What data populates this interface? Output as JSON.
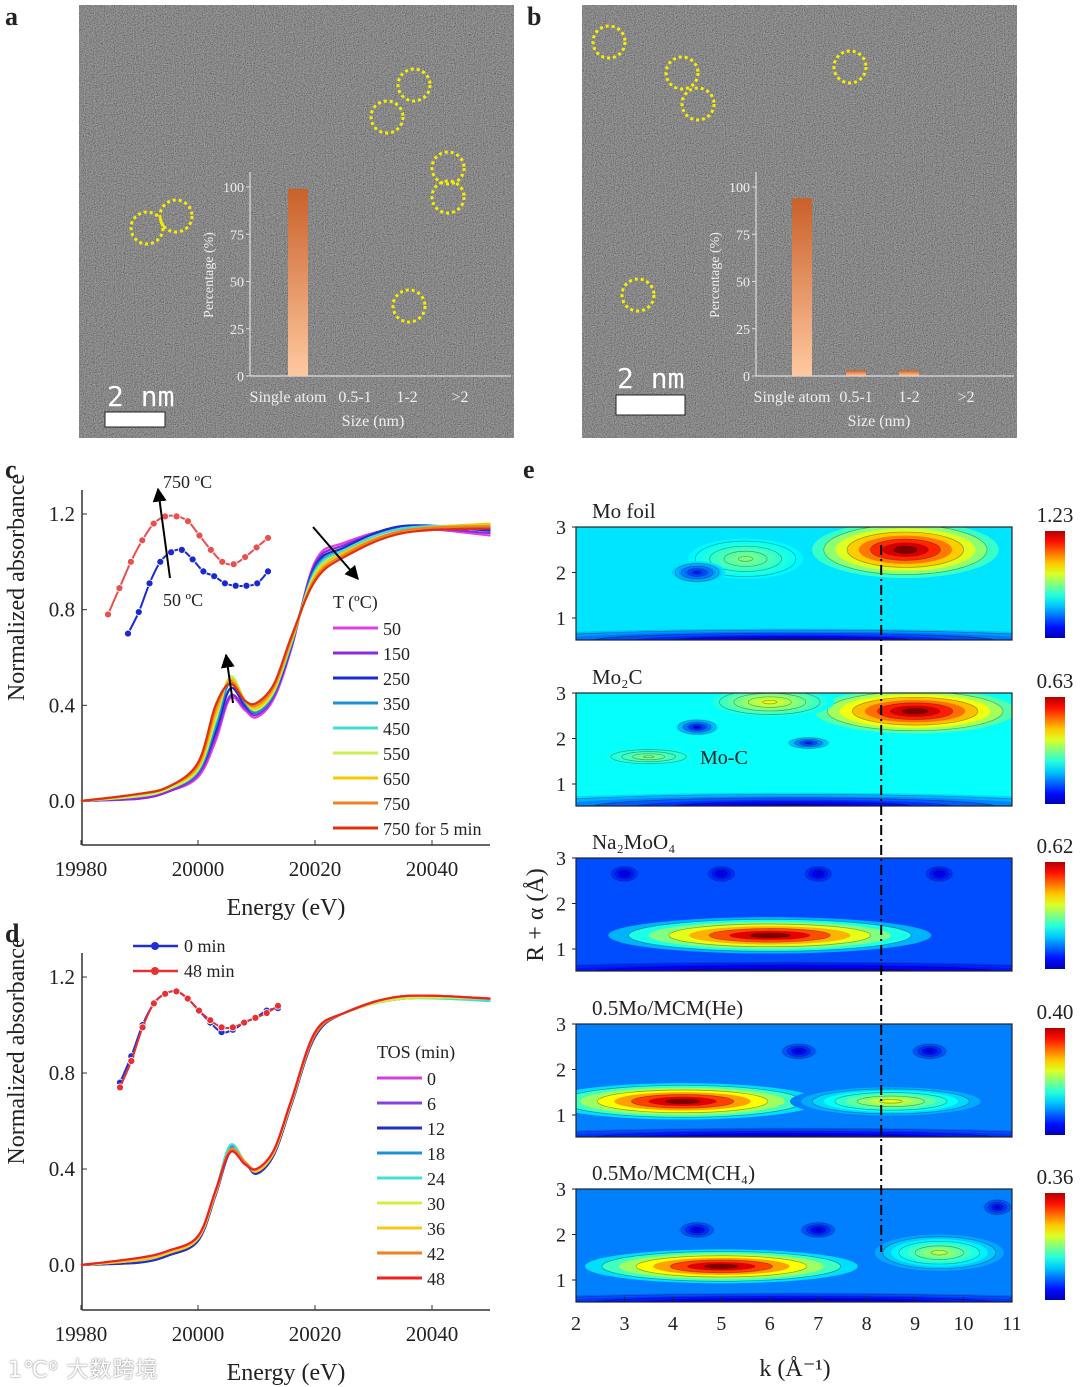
{
  "panel_labels": {
    "a": "a",
    "b": "b",
    "c": "c",
    "d": "d",
    "e": "e"
  },
  "watermark": "1℃⁰ 大数跨境",
  "tem": [
    {
      "id": "a",
      "scale_bar": "2 nm",
      "inset": {
        "ylabel": "Percentage (%)",
        "xlabel": "Size (nm)",
        "yticks": [
          "100",
          "75",
          "50",
          "25",
          "0"
        ],
        "categories": [
          "Single atom",
          "0.5-1",
          "1-2",
          ">2"
        ],
        "values": [
          99,
          0,
          0,
          0
        ]
      }
    },
    {
      "id": "b",
      "scale_bar": "2 nm",
      "inset": {
        "ylabel": "Percentage (%)",
        "xlabel": "Size (nm)",
        "yticks": [
          "100",
          "75",
          "50",
          "25",
          "0"
        ],
        "categories": [
          "Single atom",
          "0.5-1",
          "1-2",
          ">2"
        ],
        "values": [
          94,
          3,
          3,
          0
        ]
      }
    }
  ],
  "chart_data": [
    {
      "id": "c",
      "type": "line",
      "xlabel": "Energy (eV)",
      "ylabel": "Normalized absorbance",
      "xlim": [
        19980,
        20050
      ],
      "ylim": [
        -0.18,
        1.3
      ],
      "xticks": [
        "19980",
        "20000",
        "20020",
        "20040"
      ],
      "yticks": [
        "0.0",
        "0.4",
        "0.8",
        "1.2"
      ],
      "legend_title": "T (ºC)",
      "x": [
        19980,
        19990,
        19995,
        20000,
        20003,
        20005.5,
        20008,
        20010,
        20013,
        20016,
        20020,
        20025,
        20035,
        20050
      ],
      "series": [
        {
          "name": "50",
          "color": "#e040e0",
          "values": [
            0,
            0.01,
            0.04,
            0.1,
            0.25,
            0.43,
            0.38,
            0.35,
            0.43,
            0.64,
            1.0,
            1.08,
            1.14,
            1.11
          ]
        },
        {
          "name": "150",
          "color": "#8a2be2",
          "values": [
            0,
            0.01,
            0.04,
            0.11,
            0.27,
            0.44,
            0.39,
            0.36,
            0.44,
            0.65,
            0.99,
            1.07,
            1.14,
            1.12
          ]
        },
        {
          "name": "250",
          "color": "#1a2ccc",
          "values": [
            0,
            0.02,
            0.05,
            0.12,
            0.29,
            0.47,
            0.4,
            0.37,
            0.45,
            0.65,
            0.98,
            1.06,
            1.15,
            1.13
          ]
        },
        {
          "name": "350",
          "color": "#1e90d0",
          "values": [
            0,
            0.02,
            0.05,
            0.12,
            0.31,
            0.5,
            0.41,
            0.37,
            0.45,
            0.66,
            0.97,
            1.05,
            1.14,
            1.14
          ]
        },
        {
          "name": "450",
          "color": "#40e0d0",
          "values": [
            0,
            0.02,
            0.05,
            0.13,
            0.33,
            0.52,
            0.42,
            0.38,
            0.46,
            0.66,
            0.96,
            1.05,
            1.14,
            1.15
          ]
        },
        {
          "name": "550",
          "color": "#c8f050",
          "values": [
            0,
            0.02,
            0.05,
            0.13,
            0.34,
            0.52,
            0.42,
            0.38,
            0.46,
            0.67,
            0.95,
            1.04,
            1.13,
            1.16
          ]
        },
        {
          "name": "650",
          "color": "#f5c800",
          "values": [
            0,
            0.03,
            0.06,
            0.14,
            0.36,
            0.51,
            0.42,
            0.39,
            0.47,
            0.67,
            0.94,
            1.04,
            1.13,
            1.16
          ]
        },
        {
          "name": "750",
          "color": "#f08020",
          "values": [
            0,
            0.03,
            0.06,
            0.15,
            0.38,
            0.5,
            0.42,
            0.4,
            0.48,
            0.68,
            0.93,
            1.03,
            1.13,
            1.15
          ]
        },
        {
          "name": "750 for 5 min",
          "color": "#e03010",
          "values": [
            0,
            0.03,
            0.06,
            0.16,
            0.4,
            0.49,
            0.42,
            0.41,
            0.49,
            0.69,
            0.92,
            1.02,
            1.12,
            1.14
          ]
        }
      ],
      "inset": {
        "labels": {
          "top": "750 ºC",
          "bottom": "50 ºC"
        },
        "series": [
          {
            "name": "750 ºC",
            "color": "#e85050",
            "values": [
              0.78,
              0.89,
              1.0,
              1.09,
              1.16,
              1.19,
              1.19,
              1.17,
              1.11,
              1.05,
              1.0,
              0.99,
              1.02,
              1.06,
              1.1
            ]
          },
          {
            "name": "50 ºC",
            "color": "#1a28d0",
            "values": [
              0.7,
              0.79,
              0.91,
              1.0,
              1.04,
              1.05,
              1.01,
              0.96,
              0.94,
              0.91,
              0.9,
              0.9,
              0.91,
              0.96
            ]
          }
        ]
      }
    },
    {
      "id": "d",
      "type": "line",
      "xlabel": "Energy (eV)",
      "ylabel": "Normalized absorbance",
      "xlim": [
        19980,
        20050
      ],
      "ylim": [
        -0.18,
        1.3
      ],
      "xticks": [
        "19980",
        "20000",
        "20020",
        "20040"
      ],
      "yticks": [
        "0.0",
        "0.4",
        "0.8",
        "1.2"
      ],
      "legend_title": "TOS (min)",
      "x": [
        19980,
        19990,
        19995,
        20000,
        20003,
        20005.5,
        20008,
        20010,
        20013,
        20016,
        20020,
        20025,
        20035,
        20050
      ],
      "series": [
        {
          "name": "0",
          "color": "#d040e0",
          "values": [
            0,
            0.02,
            0.05,
            0.11,
            0.3,
            0.48,
            0.43,
            0.39,
            0.47,
            0.68,
            0.96,
            1.05,
            1.11,
            1.11
          ]
        },
        {
          "name": "6",
          "color": "#8a40e0",
          "values": [
            0,
            0.02,
            0.05,
            0.11,
            0.3,
            0.48,
            0.43,
            0.39,
            0.47,
            0.68,
            0.96,
            1.05,
            1.11,
            1.11
          ]
        },
        {
          "name": "12",
          "color": "#2030c0",
          "values": [
            0,
            0.01,
            0.04,
            0.1,
            0.29,
            0.47,
            0.43,
            0.38,
            0.46,
            0.67,
            0.95,
            1.05,
            1.12,
            1.11
          ]
        },
        {
          "name": "18",
          "color": "#2090d8",
          "values": [
            0,
            0.02,
            0.05,
            0.11,
            0.3,
            0.49,
            0.43,
            0.39,
            0.47,
            0.68,
            0.96,
            1.05,
            1.11,
            1.11
          ]
        },
        {
          "name": "24",
          "color": "#40e0d8",
          "values": [
            0,
            0.03,
            0.06,
            0.12,
            0.31,
            0.5,
            0.43,
            0.4,
            0.47,
            0.68,
            0.96,
            1.05,
            1.11,
            1.1
          ]
        },
        {
          "name": "30",
          "color": "#d0f040",
          "values": [
            0,
            0.02,
            0.05,
            0.11,
            0.3,
            0.48,
            0.43,
            0.39,
            0.47,
            0.68,
            0.96,
            1.05,
            1.11,
            1.11
          ]
        },
        {
          "name": "36",
          "color": "#f8c820",
          "values": [
            0,
            0.02,
            0.05,
            0.11,
            0.3,
            0.48,
            0.43,
            0.39,
            0.47,
            0.68,
            0.96,
            1.05,
            1.12,
            1.11
          ]
        },
        {
          "name": "42",
          "color": "#f08020",
          "values": [
            0,
            0.03,
            0.06,
            0.12,
            0.31,
            0.48,
            0.43,
            0.4,
            0.48,
            0.69,
            0.96,
            1.05,
            1.12,
            1.11
          ]
        },
        {
          "name": "48",
          "color": "#f02020",
          "values": [
            0,
            0.03,
            0.06,
            0.12,
            0.31,
            0.47,
            0.42,
            0.4,
            0.48,
            0.69,
            0.97,
            1.05,
            1.12,
            1.11
          ]
        }
      ],
      "inset": {
        "legend": [
          "0 min",
          "48 min"
        ],
        "series": [
          {
            "name": "0 min",
            "color": "#2030d0",
            "values": [
              0.76,
              0.87,
              1.0,
              1.09,
              1.13,
              1.14,
              1.11,
              1.06,
              1.01,
              0.97,
              0.98,
              1.01,
              1.03,
              1.06,
              1.07
            ]
          },
          {
            "name": "48 min",
            "color": "#e83030",
            "values": [
              0.74,
              0.85,
              0.99,
              1.09,
              1.13,
              1.14,
              1.11,
              1.06,
              1.02,
              0.99,
              0.99,
              1.01,
              1.03,
              1.05,
              1.08
            ]
          }
        ]
      }
    },
    {
      "id": "e",
      "type": "heatmap",
      "xlabel": "k (Å⁻¹)",
      "ylabel": "R + α (Å)",
      "xlim": [
        2,
        11
      ],
      "ylim": [
        0.5,
        3.0
      ],
      "xticks": [
        "2",
        "3",
        "4",
        "5",
        "6",
        "7",
        "8",
        "9",
        "10",
        "11"
      ],
      "yticks": [
        "1",
        "2",
        "3"
      ],
      "reference_k": 8.3,
      "annotation": "Mo-C",
      "panels": [
        {
          "name": "Mo foil",
          "colorbar_max": "1.23",
          "base": 0.35,
          "features": [
            {
              "k": 8.8,
              "R": 2.5,
              "wk": 2.6,
              "wR": 0.7,
              "level": 1.0
            },
            {
              "k": 5.5,
              "R": 2.3,
              "wk": 1.6,
              "wR": 0.5,
              "level": 0.5
            },
            {
              "k": 4.5,
              "R": 2.0,
              "wk": 0.7,
              "wR": 0.25,
              "level": 0.15
            },
            {
              "k": 6.5,
              "R": 0.5,
              "wk": 9,
              "wR": 0.3,
              "level": 0.05
            }
          ]
        },
        {
          "name": "Mo₂C",
          "colorbar_max": "0.63",
          "base": 0.38,
          "features": [
            {
              "k": 9.0,
              "R": 2.6,
              "wk": 2.8,
              "wR": 0.55,
              "level": 1.0
            },
            {
              "k": 6.0,
              "R": 2.8,
              "wk": 1.6,
              "wR": 0.35,
              "level": 0.6
            },
            {
              "k": 4.5,
              "R": 2.25,
              "wk": 0.6,
              "wR": 0.2,
              "level": 0.12
            },
            {
              "k": 6.8,
              "R": 1.9,
              "wk": 0.6,
              "wR": 0.15,
              "level": 0.15
            },
            {
              "k": 3.5,
              "R": 1.6,
              "wk": 1.2,
              "wR": 0.2,
              "level": 0.5
            },
            {
              "k": 6.5,
              "R": 0.5,
              "wk": 9,
              "wR": 0.35,
              "level": 0.05
            }
          ]
        },
        {
          "name": "Na₂MoO₄",
          "colorbar_max": "0.62",
          "base": 0.2,
          "features": [
            {
              "k": 6.0,
              "R": 1.3,
              "wk": 4.5,
              "wR": 0.45,
              "level": 1.0
            },
            {
              "k": 3.0,
              "R": 2.65,
              "wk": 0.4,
              "wR": 0.2,
              "level": 0.1
            },
            {
              "k": 5.0,
              "R": 2.65,
              "wk": 0.4,
              "wR": 0.2,
              "level": 0.1
            },
            {
              "k": 7.0,
              "R": 2.65,
              "wk": 0.4,
              "wR": 0.2,
              "level": 0.1
            },
            {
              "k": 9.5,
              "R": 2.65,
              "wk": 0.4,
              "wR": 0.2,
              "level": 0.1
            },
            {
              "k": 6.5,
              "R": 0.5,
              "wk": 9,
              "wR": 0.25,
              "level": 0.05
            }
          ]
        },
        {
          "name": "0.5Mo/MCM(He)",
          "colorbar_max": "0.40",
          "base": 0.25,
          "features": [
            {
              "k": 4.2,
              "R": 1.3,
              "wk": 3.8,
              "wR": 0.45,
              "level": 1.0
            },
            {
              "k": 8.5,
              "R": 1.3,
              "wk": 2.5,
              "wR": 0.35,
              "level": 0.6
            },
            {
              "k": 6.6,
              "R": 2.4,
              "wk": 0.5,
              "wR": 0.2,
              "level": 0.1
            },
            {
              "k": 9.3,
              "R": 2.4,
              "wk": 0.5,
              "wR": 0.2,
              "level": 0.1
            },
            {
              "k": 6.5,
              "R": 0.5,
              "wk": 9,
              "wR": 0.25,
              "level": 0.05
            }
          ]
        },
        {
          "name": "0.5Mo/MCM(CH₄)",
          "colorbar_max": "0.36",
          "base": 0.25,
          "features": [
            {
              "k": 5.0,
              "R": 1.3,
              "wk": 3.8,
              "wR": 0.42,
              "level": 1.0
            },
            {
              "k": 9.5,
              "R": 1.6,
              "wk": 1.8,
              "wR": 0.45,
              "level": 0.55
            },
            {
              "k": 4.5,
              "R": 2.1,
              "wk": 0.5,
              "wR": 0.2,
              "level": 0.1
            },
            {
              "k": 7.0,
              "R": 2.1,
              "wk": 0.5,
              "wR": 0.2,
              "level": 0.1
            },
            {
              "k": 10.7,
              "R": 2.6,
              "wk": 0.4,
              "wR": 0.2,
              "level": 0.12
            },
            {
              "k": 6.5,
              "R": 0.5,
              "wk": 9,
              "wR": 0.25,
              "level": 0.05
            }
          ]
        }
      ]
    }
  ]
}
